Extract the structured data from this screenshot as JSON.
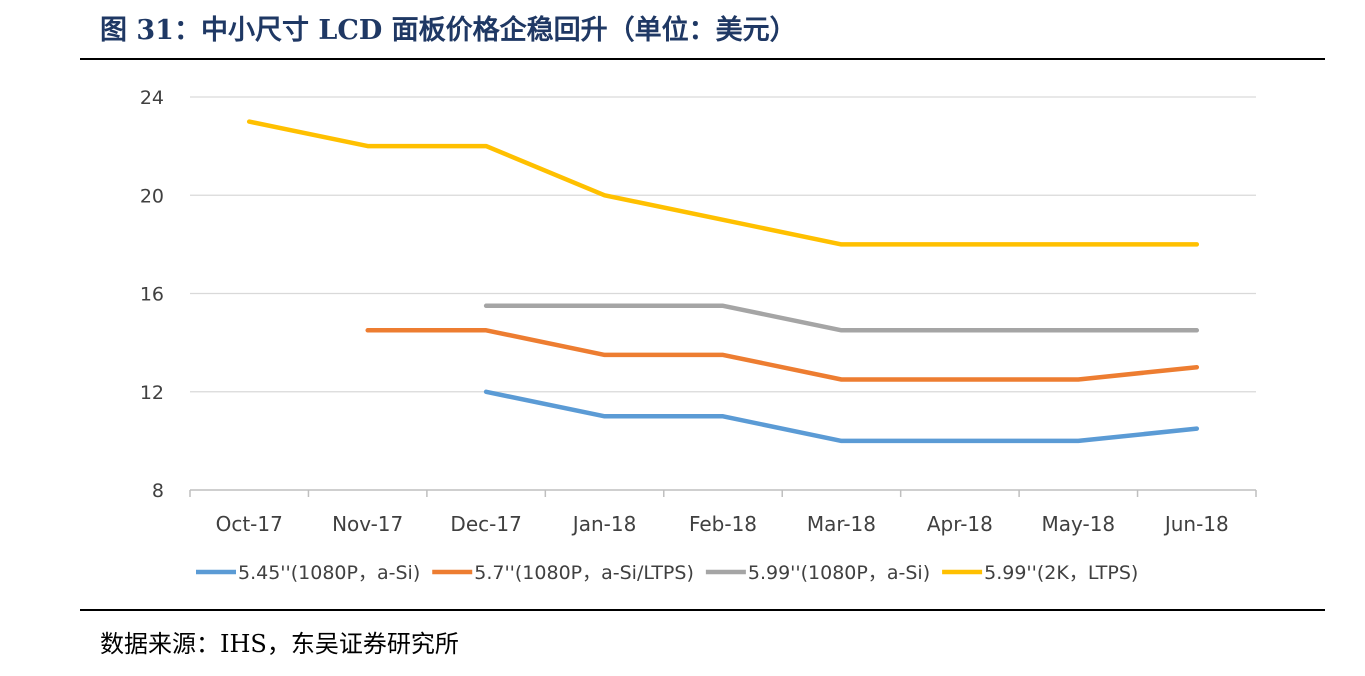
{
  "figure": {
    "title": "图 31：中小尺寸 LCD 面板价格企稳回升（单位：美元）",
    "source": "数据来源：IHS，东吴证券研究所"
  },
  "chart_data": {
    "type": "line",
    "categories": [
      "Oct-17",
      "Nov-17",
      "Dec-17",
      "Jan-18",
      "Feb-18",
      "Mar-18",
      "Apr-18",
      "May-18",
      "Jun-18"
    ],
    "ylim": [
      8,
      24
    ],
    "yticks": [
      8,
      12,
      16,
      20,
      24
    ],
    "grid": true,
    "legend_position": "bottom",
    "series": [
      {
        "name": "5.45''(1080P，a-Si)",
        "color": "#5b9bd5",
        "values": [
          null,
          null,
          12,
          11,
          11,
          10,
          10,
          10,
          10.5
        ]
      },
      {
        "name": "5.7''(1080P，a-Si/LTPS)",
        "color": "#ed7d31",
        "values": [
          null,
          14.5,
          14.5,
          13.5,
          13.5,
          12.5,
          12.5,
          12.5,
          13
        ]
      },
      {
        "name": "5.99''(1080P，a-Si)",
        "color": "#a5a5a5",
        "values": [
          null,
          null,
          15.5,
          15.5,
          15.5,
          14.5,
          14.5,
          14.5,
          14.5
        ]
      },
      {
        "name": "5.99''(2K，LTPS)",
        "color": "#ffc000",
        "values": [
          23,
          22,
          22,
          20,
          19,
          18,
          18,
          18,
          18
        ]
      }
    ]
  }
}
